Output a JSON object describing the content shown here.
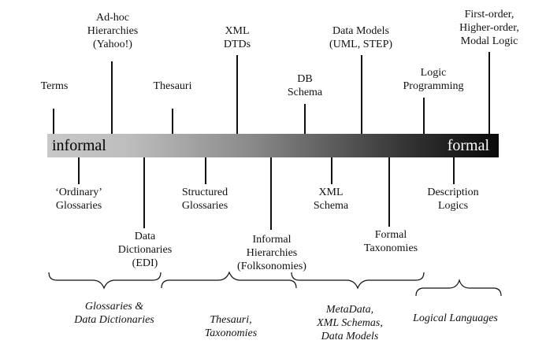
{
  "bar": {
    "left_label": "informal",
    "right_label": "formal",
    "gradient_start_color": "#c8c8c8",
    "gradient_end_color": "#0a0a0a"
  },
  "top_terms": [
    {
      "label": "Terms"
    },
    {
      "label": "Ad-hoc\nHierarchies\n(Yahoo!)"
    },
    {
      "label": "Thesauri"
    },
    {
      "label": "XML\nDTDs"
    },
    {
      "label": "DB\nSchema"
    },
    {
      "label": "Data Models\n(UML, STEP)"
    },
    {
      "label": "Logic\nProgramming"
    },
    {
      "label": "First-order,\nHigher-order,\nModal Logic"
    }
  ],
  "bottom_terms": [
    {
      "label": "‘Ordinary’\nGlossaries"
    },
    {
      "label": "Data\nDictionaries\n(EDI)"
    },
    {
      "label": "Structured\nGlossaries"
    },
    {
      "label": "Informal\nHierarchies\n(Folksonomies)"
    },
    {
      "label": "XML\nSchema"
    },
    {
      "label": "Formal\nTaxonomies"
    },
    {
      "label": "Description\nLogics"
    }
  ],
  "groups": [
    {
      "label": "Glossaries &\nData Dictionaries"
    },
    {
      "label": "Thesauri,\nTaxonomies"
    },
    {
      "label": "MetaData,\nXML Schemas,\nData Models"
    },
    {
      "label": "Logical Languages"
    }
  ]
}
